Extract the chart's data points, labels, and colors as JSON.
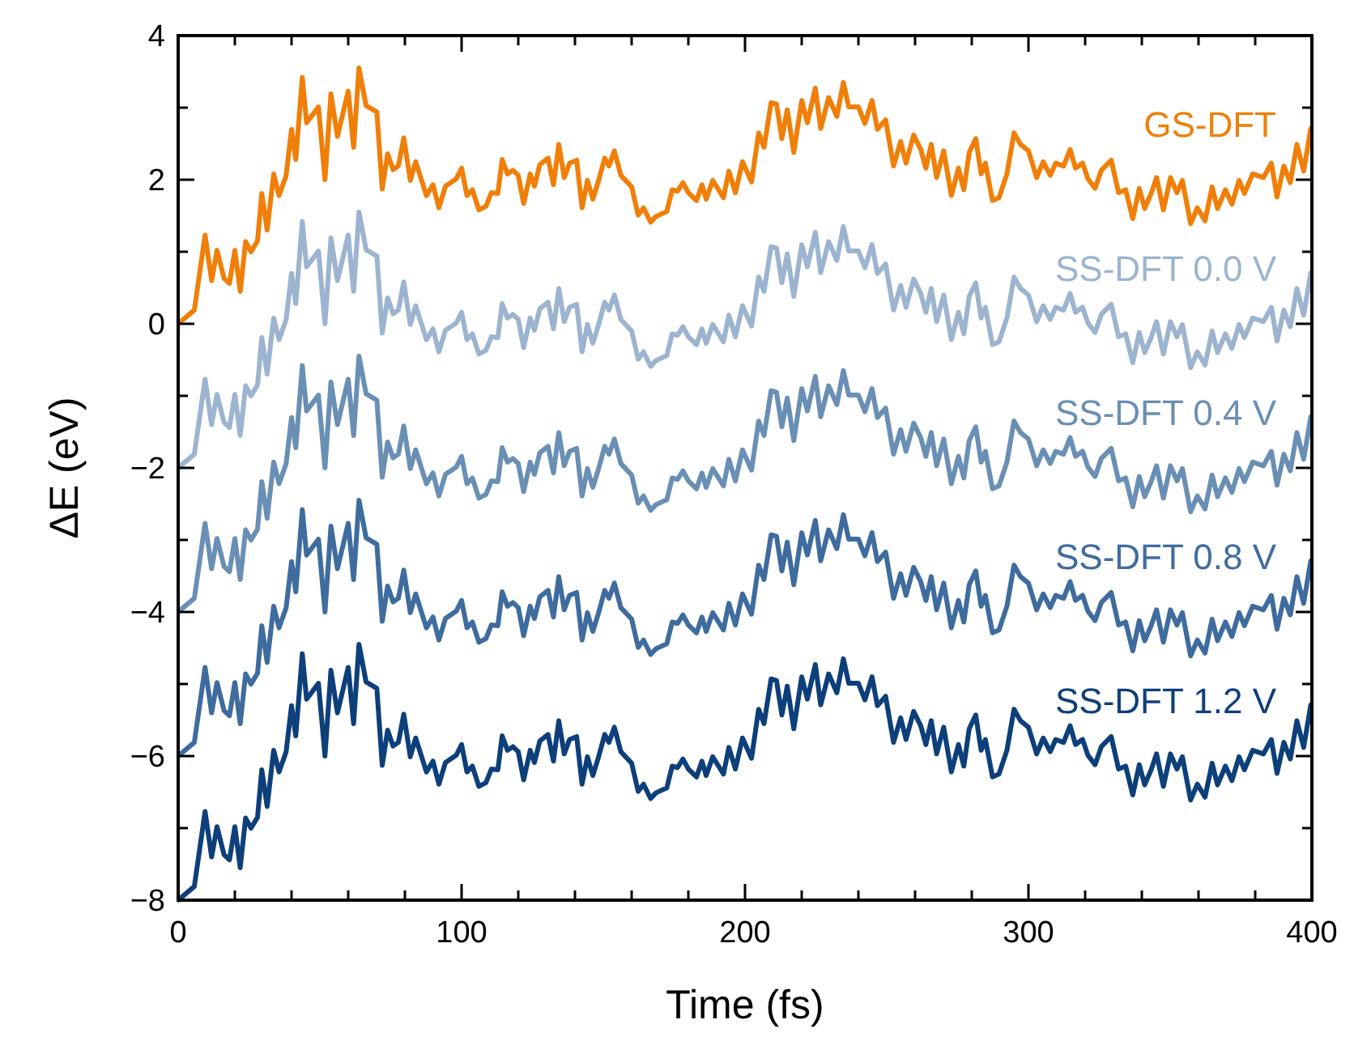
{
  "chart_data": {
    "type": "line",
    "xlabel": "Time (fs)",
    "ylabel": "ΔE (eV)",
    "xlim": [
      0,
      400
    ],
    "ylim": [
      -8,
      4
    ],
    "xticks": [
      0,
      {
        "value": 20,
        "label": null
      },
      {
        "value": 40,
        "label": null
      },
      {
        "value": 60,
        "label": null
      },
      {
        "value": 80,
        "label": null
      },
      100,
      {
        "value": 120,
        "label": null
      },
      {
        "value": 140,
        "label": null
      },
      {
        "value": 160,
        "label": null
      },
      {
        "value": 180,
        "label": null
      },
      200,
      {
        "value": 220,
        "label": null
      },
      {
        "value": 240,
        "label": null
      },
      {
        "value": 260,
        "label": null
      },
      {
        "value": 280,
        "label": null
      },
      300,
      {
        "value": 320,
        "label": null
      },
      {
        "value": 340,
        "label": null
      },
      {
        "value": 360,
        "label": null
      },
      {
        "value": 380,
        "label": null
      },
      400
    ],
    "yticks": [
      -8,
      {
        "value": -7,
        "label": null
      },
      -6,
      {
        "value": -5,
        "label": null
      },
      -4,
      {
        "value": -3,
        "label": null
      },
      -2,
      {
        "value": -1,
        "label": null
      },
      0,
      {
        "value": 1,
        "label": null
      },
      2,
      {
        "value": 3,
        "label": null
      },
      4
    ],
    "marker": "none",
    "line_style": "solid",
    "x": [
      0,
      5.7,
      9.5,
      11.8,
      13.7,
      16.2,
      18.1,
      20,
      21.9,
      23.8,
      25.7,
      28,
      29.5,
      31.4,
      33.7,
      35.6,
      38.1,
      40,
      41.5,
      43.8,
      45.3,
      49.5,
      51.8,
      53.9,
      56.2,
      60,
      61.9,
      63.8,
      66.3,
      70.1,
      72,
      73.9,
      75.8,
      77.7,
      79.6,
      81.9,
      83.8,
      87.6,
      89.9,
      92,
      94.3,
      98.1,
      100,
      101.9,
      103.8,
      106.1,
      108.6,
      110.5,
      112.8,
      114.3,
      116.2,
      118.1,
      120,
      121.9,
      124.2,
      125.7,
      127.6,
      130.5,
      132.4,
      134.3,
      136.2,
      138.1,
      140.6,
      142.5,
      144.4,
      146.3,
      148.2,
      150.5,
      152,
      153.9,
      156.2,
      160,
      162.3,
      164.2,
      166.7,
      168.6,
      172.4,
      174.3,
      176.2,
      178.1,
      180,
      182.9,
      184.8,
      186.3,
      188.6,
      192.4,
      194.3,
      196.6,
      199.1,
      202.3,
      204.8,
      206.7,
      209.2,
      211.1,
      213,
      214.9,
      217.2,
      220,
      222,
      224.8,
      226.7,
      229.5,
      232.4,
      234.7,
      236.6,
      240,
      242.3,
      244.8,
      246.7,
      249.6,
      252.4,
      254.9,
      256.8,
      259.5,
      262,
      263.8,
      265.7,
      267.6,
      270.1,
      272.8,
      275.3,
      277.2,
      279.1,
      281.4,
      283.3,
      284.8,
      287.3,
      289.6,
      292.4,
      294.9,
      297.2,
      300,
      302.9,
      305.2,
      307.7,
      309.6,
      312.4,
      314.7,
      316.6,
      319.1,
      321,
      323.5,
      325.7,
      329.2,
      331.8,
      334.3,
      336.8,
      339.1,
      341,
      343.3,
      345.2,
      347.6,
      350.1,
      352.4,
      354.3,
      357.2,
      359.6,
      362.3,
      364.8,
      366.7,
      369.5,
      371.8,
      374.3,
      376.2,
      379.1,
      382.9,
      385.7,
      387.7,
      390.1,
      392.4,
      394.7,
      397.1,
      399.6
    ],
    "series": [
      {
        "name": "GS-DFT",
        "color": "#f07f09",
        "values": [
          0,
          0.19,
          1.23,
          0.6,
          1.02,
          0.63,
          0.56,
          1.02,
          0.45,
          1.14,
          1.0,
          1.15,
          1.81,
          1.3,
          2.08,
          1.78,
          2.06,
          2.7,
          2.28,
          3.42,
          2.79,
          3.01,
          2.0,
          3.19,
          2.6,
          3.23,
          2.45,
          3.55,
          3.03,
          2.94,
          1.87,
          2.36,
          2.14,
          2.19,
          2.58,
          1.99,
          2.25,
          1.78,
          1.93,
          1.61,
          1.91,
          2.01,
          2.16,
          1.78,
          1.86,
          1.58,
          1.63,
          1.82,
          1.81,
          2.28,
          2.08,
          2.13,
          2.06,
          1.67,
          2.08,
          1.91,
          2.21,
          2.3,
          1.93,
          2.49,
          2.03,
          2.23,
          2.27,
          1.61,
          1.99,
          1.73,
          1.97,
          2.3,
          2.19,
          2.4,
          2.06,
          1.9,
          1.51,
          1.61,
          1.41,
          1.49,
          1.56,
          1.86,
          1.84,
          1.96,
          1.82,
          1.71,
          1.93,
          1.73,
          1.99,
          1.75,
          2.12,
          1.82,
          2.25,
          1.97,
          2.65,
          2.45,
          3.07,
          3.05,
          2.57,
          2.97,
          2.38,
          3.1,
          2.79,
          3.27,
          2.71,
          3.14,
          2.88,
          3.35,
          3.01,
          3.01,
          2.78,
          3.1,
          2.7,
          2.83,
          2.19,
          2.53,
          2.23,
          2.62,
          2.42,
          2.16,
          2.49,
          2.03,
          2.4,
          1.78,
          2.16,
          1.86,
          2.38,
          2.57,
          2.08,
          2.23,
          1.71,
          1.75,
          2.08,
          2.65,
          2.49,
          2.4,
          2.03,
          2.25,
          2.06,
          2.23,
          2.19,
          2.42,
          2.16,
          2.23,
          2.01,
          1.88,
          2.13,
          2.27,
          1.82,
          1.86,
          1.46,
          1.88,
          1.6,
          1.81,
          2.03,
          1.58,
          2.03,
          1.82,
          1.99,
          1.39,
          1.61,
          1.43,
          1.9,
          1.6,
          1.86,
          1.66,
          1.99,
          1.81,
          2.08,
          2.03,
          2.23,
          1.76,
          2.19,
          1.96,
          2.49,
          2.12,
          2.71
        ]
      },
      {
        "name": "SS-DFT 0.0 V",
        "color": "#9cb4cf",
        "values": [
          -2,
          -1.81,
          -0.77,
          -1.4,
          -0.98,
          -1.37,
          -1.44,
          -0.98,
          -1.55,
          -0.86,
          -1.0,
          -0.85,
          -0.19,
          -0.7,
          0.08,
          -0.22,
          0.06,
          0.7,
          0.28,
          1.42,
          0.79,
          1.01,
          0.0,
          1.19,
          0.6,
          1.23,
          0.45,
          1.55,
          1.03,
          0.94,
          -0.13,
          0.36,
          0.14,
          0.19,
          0.58,
          -0.01,
          0.25,
          -0.22,
          -0.07,
          -0.39,
          -0.09,
          0.01,
          0.16,
          -0.22,
          -0.14,
          -0.42,
          -0.37,
          -0.18,
          -0.19,
          0.28,
          0.08,
          0.13,
          0.06,
          -0.33,
          0.08,
          -0.09,
          0.21,
          0.3,
          -0.07,
          0.49,
          0.03,
          0.23,
          0.27,
          -0.39,
          -0.01,
          -0.27,
          -0.03,
          0.3,
          0.19,
          0.4,
          0.06,
          -0.1,
          -0.49,
          -0.39,
          -0.59,
          -0.51,
          -0.44,
          -0.14,
          -0.16,
          -0.04,
          -0.18,
          -0.29,
          -0.07,
          -0.27,
          -0.01,
          -0.25,
          0.12,
          -0.18,
          0.25,
          -0.03,
          0.65,
          0.45,
          1.07,
          1.05,
          0.57,
          0.97,
          0.38,
          1.1,
          0.79,
          1.27,
          0.71,
          1.14,
          0.88,
          1.35,
          1.01,
          1.01,
          0.78,
          1.1,
          0.7,
          0.83,
          0.19,
          0.53,
          0.23,
          0.62,
          0.42,
          0.16,
          0.49,
          0.03,
          0.4,
          -0.22,
          0.16,
          -0.14,
          0.38,
          0.57,
          0.08,
          0.23,
          -0.29,
          -0.25,
          0.08,
          0.65,
          0.49,
          0.4,
          0.03,
          0.25,
          0.06,
          0.23,
          0.19,
          0.42,
          0.16,
          0.23,
          0.01,
          -0.12,
          0.13,
          0.27,
          -0.18,
          -0.14,
          -0.54,
          -0.12,
          -0.4,
          -0.19,
          0.03,
          -0.42,
          0.03,
          -0.18,
          -0.01,
          -0.61,
          -0.39,
          -0.57,
          -0.1,
          -0.4,
          -0.14,
          -0.34,
          -0.01,
          -0.19,
          0.08,
          0.03,
          0.23,
          -0.24,
          0.19,
          -0.04,
          0.49,
          0.12,
          0.71
        ]
      },
      {
        "name": "SS-DFT 0.4 V",
        "color": "#6a8fb5",
        "values": [
          -4,
          -3.81,
          -2.77,
          -3.4,
          -2.98,
          -3.37,
          -3.44,
          -2.98,
          -3.55,
          -2.86,
          -3.0,
          -2.85,
          -2.19,
          -2.7,
          -1.92,
          -2.22,
          -1.94,
          -1.3,
          -1.72,
          -0.58,
          -1.21,
          -0.99,
          -2.0,
          -0.81,
          -1.4,
          -0.77,
          -1.55,
          -0.45,
          -0.97,
          -1.06,
          -2.13,
          -1.64,
          -1.86,
          -1.81,
          -1.42,
          -2.01,
          -1.75,
          -2.22,
          -2.07,
          -2.39,
          -2.09,
          -1.99,
          -1.84,
          -2.22,
          -2.14,
          -2.42,
          -2.37,
          -2.18,
          -2.19,
          -1.72,
          -1.92,
          -1.87,
          -1.94,
          -2.33,
          -1.92,
          -2.09,
          -1.79,
          -1.7,
          -2.07,
          -1.51,
          -1.97,
          -1.77,
          -1.73,
          -2.39,
          -2.01,
          -2.27,
          -2.03,
          -1.7,
          -1.81,
          -1.6,
          -1.94,
          -2.1,
          -2.49,
          -2.39,
          -2.59,
          -2.51,
          -2.44,
          -2.14,
          -2.16,
          -2.04,
          -2.18,
          -2.29,
          -2.07,
          -2.27,
          -2.01,
          -2.25,
          -1.88,
          -2.18,
          -1.75,
          -2.03,
          -1.35,
          -1.55,
          -0.93,
          -0.95,
          -1.43,
          -1.03,
          -1.62,
          -0.9,
          -1.21,
          -0.73,
          -1.29,
          -0.86,
          -1.12,
          -0.65,
          -0.99,
          -0.99,
          -1.22,
          -0.9,
          -1.3,
          -1.17,
          -1.81,
          -1.47,
          -1.77,
          -1.38,
          -1.58,
          -1.84,
          -1.51,
          -1.97,
          -1.6,
          -2.22,
          -1.84,
          -2.14,
          -1.62,
          -1.43,
          -1.92,
          -1.77,
          -2.29,
          -2.25,
          -1.92,
          -1.35,
          -1.51,
          -1.6,
          -1.97,
          -1.75,
          -1.94,
          -1.77,
          -1.81,
          -1.58,
          -1.84,
          -1.77,
          -1.99,
          -2.12,
          -1.87,
          -1.73,
          -2.18,
          -2.14,
          -2.54,
          -2.12,
          -2.4,
          -2.19,
          -1.97,
          -2.42,
          -1.97,
          -2.18,
          -2.01,
          -2.61,
          -2.39,
          -2.57,
          -2.1,
          -2.4,
          -2.14,
          -2.34,
          -2.01,
          -2.19,
          -1.92,
          -1.97,
          -1.77,
          -2.24,
          -1.81,
          -2.04,
          -1.51,
          -1.88,
          -1.29
        ]
      },
      {
        "name": "SS-DFT 0.8 V",
        "color": "#3f6c9e",
        "values": [
          -6,
          -5.81,
          -4.77,
          -5.4,
          -4.98,
          -5.37,
          -5.44,
          -4.98,
          -5.55,
          -4.86,
          -5.0,
          -4.85,
          -4.19,
          -4.7,
          -3.92,
          -4.22,
          -3.94,
          -3.3,
          -3.72,
          -2.58,
          -3.21,
          -2.99,
          -4.0,
          -2.81,
          -3.4,
          -2.77,
          -3.55,
          -2.45,
          -2.97,
          -3.06,
          -4.13,
          -3.64,
          -3.86,
          -3.81,
          -3.42,
          -4.01,
          -3.75,
          -4.22,
          -4.07,
          -4.39,
          -4.09,
          -3.99,
          -3.84,
          -4.22,
          -4.14,
          -4.42,
          -4.37,
          -4.18,
          -4.19,
          -3.72,
          -3.92,
          -3.87,
          -3.94,
          -4.33,
          -3.92,
          -4.09,
          -3.79,
          -3.7,
          -4.07,
          -3.51,
          -3.97,
          -3.77,
          -3.73,
          -4.39,
          -4.01,
          -4.27,
          -4.03,
          -3.7,
          -3.81,
          -3.6,
          -3.94,
          -4.1,
          -4.49,
          -4.39,
          -4.59,
          -4.51,
          -4.44,
          -4.14,
          -4.16,
          -4.04,
          -4.18,
          -4.29,
          -4.07,
          -4.27,
          -4.01,
          -4.25,
          -3.88,
          -4.18,
          -3.75,
          -4.03,
          -3.35,
          -3.55,
          -2.93,
          -2.95,
          -3.43,
          -3.03,
          -3.62,
          -2.9,
          -3.21,
          -2.73,
          -3.29,
          -2.86,
          -3.12,
          -2.65,
          -2.99,
          -2.99,
          -3.22,
          -2.9,
          -3.3,
          -3.17,
          -3.81,
          -3.47,
          -3.77,
          -3.38,
          -3.58,
          -3.84,
          -3.51,
          -3.97,
          -3.6,
          -4.22,
          -3.84,
          -4.14,
          -3.62,
          -3.43,
          -3.92,
          -3.77,
          -4.29,
          -4.25,
          -3.92,
          -3.35,
          -3.51,
          -3.6,
          -3.97,
          -3.75,
          -3.94,
          -3.77,
          -3.81,
          -3.58,
          -3.84,
          -3.77,
          -3.99,
          -4.12,
          -3.87,
          -3.73,
          -4.18,
          -4.14,
          -4.54,
          -4.12,
          -4.4,
          -4.19,
          -3.97,
          -4.42,
          -3.97,
          -4.18,
          -4.01,
          -4.61,
          -4.39,
          -4.57,
          -4.1,
          -4.4,
          -4.14,
          -4.34,
          -4.01,
          -4.19,
          -3.92,
          -3.97,
          -3.77,
          -4.24,
          -3.81,
          -4.04,
          -3.51,
          -3.88,
          -3.29
        ]
      },
      {
        "name": "SS-DFT 1.2 V",
        "color": "#0d3f7a",
        "values": [
          -8,
          -7.81,
          -6.77,
          -7.4,
          -6.98,
          -7.37,
          -7.44,
          -6.98,
          -7.55,
          -6.86,
          -7.0,
          -6.85,
          -6.19,
          -6.7,
          -5.92,
          -6.22,
          -5.94,
          -5.3,
          -5.72,
          -4.58,
          -5.21,
          -4.99,
          -6.0,
          -4.81,
          -5.4,
          -4.77,
          -5.55,
          -4.45,
          -4.97,
          -5.06,
          -6.13,
          -5.64,
          -5.86,
          -5.81,
          -5.42,
          -6.01,
          -5.75,
          -6.22,
          -6.07,
          -6.39,
          -6.09,
          -5.99,
          -5.84,
          -6.22,
          -6.14,
          -6.42,
          -6.37,
          -6.18,
          -6.19,
          -5.72,
          -5.92,
          -5.87,
          -5.94,
          -6.33,
          -5.92,
          -6.09,
          -5.79,
          -5.7,
          -6.07,
          -5.51,
          -5.97,
          -5.77,
          -5.73,
          -6.39,
          -6.01,
          -6.27,
          -6.03,
          -5.7,
          -5.81,
          -5.6,
          -5.94,
          -6.1,
          -6.49,
          -6.39,
          -6.59,
          -6.51,
          -6.44,
          -6.14,
          -6.16,
          -6.04,
          -6.18,
          -6.29,
          -6.07,
          -6.27,
          -6.01,
          -6.25,
          -5.88,
          -6.18,
          -5.75,
          -6.03,
          -5.35,
          -5.55,
          -4.93,
          -4.95,
          -5.43,
          -5.03,
          -5.62,
          -4.9,
          -5.21,
          -4.73,
          -5.29,
          -4.86,
          -5.12,
          -4.65,
          -4.99,
          -4.99,
          -5.22,
          -4.9,
          -5.3,
          -5.17,
          -5.81,
          -5.47,
          -5.77,
          -5.38,
          -5.58,
          -5.84,
          -5.51,
          -5.97,
          -5.6,
          -6.22,
          -5.84,
          -6.14,
          -5.62,
          -5.43,
          -5.92,
          -5.77,
          -6.29,
          -6.25,
          -5.92,
          -5.35,
          -5.51,
          -5.6,
          -5.97,
          -5.75,
          -5.94,
          -5.77,
          -5.81,
          -5.58,
          -5.84,
          -5.77,
          -5.99,
          -6.12,
          -5.87,
          -5.73,
          -6.18,
          -6.14,
          -6.54,
          -6.12,
          -6.4,
          -6.19,
          -5.97,
          -6.42,
          -5.97,
          -6.18,
          -6.01,
          -6.61,
          -6.39,
          -6.57,
          -6.1,
          -6.4,
          -6.14,
          -6.34,
          -6.01,
          -6.19,
          -5.92,
          -5.97,
          -5.77,
          -6.24,
          -5.81,
          -6.04,
          -5.51,
          -5.88,
          -5.29
        ]
      }
    ]
  }
}
